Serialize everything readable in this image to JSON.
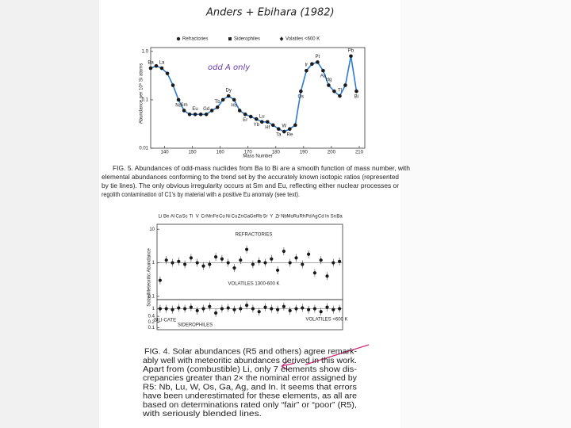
{
  "handwritten_title": "Anders + Ebihara (1982)",
  "figure5": {
    "type": "scatter",
    "legend": [
      "Refractories",
      "Siderophiles",
      "Volatiles <600 K"
    ],
    "annotation": "odd A only",
    "y_label": "Abundance per 10⁶ Si atoms",
    "x_label": "Mass Number",
    "log_y": true,
    "xlim": [
      135,
      212
    ],
    "xticks": [
      140,
      150,
      160,
      170,
      180,
      190,
      200,
      210
    ],
    "ylim": [
      0.01,
      1.2
    ],
    "yticks": [
      {
        "value": 1,
        "label": "1.0"
      },
      0.1,
      0.01
    ],
    "line_color": "#2e7bd6",
    "x": [
      135,
      137,
      139,
      141,
      143,
      145,
      147,
      149,
      151,
      153,
      155,
      157,
      159,
      161,
      163,
      165,
      167,
      169,
      171,
      173,
      175,
      177,
      179,
      181,
      183,
      185,
      187,
      189,
      191,
      193,
      195,
      197,
      199,
      201,
      203,
      205,
      207,
      209
    ],
    "values": [
      0.45,
      0.5,
      0.45,
      0.35,
      0.2,
      0.1,
      0.06,
      0.05,
      0.05,
      0.05,
      0.05,
      0.06,
      0.07,
      0.1,
      0.12,
      0.1,
      0.06,
      0.05,
      0.045,
      0.04,
      0.035,
      0.035,
      0.03,
      0.025,
      0.022,
      0.025,
      0.03,
      0.15,
      0.4,
      0.55,
      0.6,
      0.4,
      0.2,
      0.15,
      0.12,
      0.2,
      0.8,
      0.15
    ],
    "point_labels": [
      "Ba",
      null,
      "La",
      null,
      null,
      "Nd",
      "Sm",
      null,
      "Eu",
      null,
      "Gd",
      null,
      "Tb",
      null,
      "Dy",
      "Ho",
      null,
      "Er",
      null,
      "Yb",
      "Lu",
      "Hf",
      null,
      "Ta",
      "W",
      "Re",
      null,
      "Os",
      "Ir",
      null,
      "Pt",
      "Au",
      "Hg",
      null,
      "Tl",
      null,
      "Pb",
      "Bi"
    ]
  },
  "caption5": [
    "FIG. 5. Abundances of odd-mass nuclides from Ba to Bi are a smooth function of mass number, with",
    "elemental abundances conforming to the trend set by the accurately known isotopic ratios (represented",
    "by tie lines). The only obvious irregularity occurs at Sm and Eu, reflecting either nuclear processes or",
    "regolith contamination of C1's by material with a positive Eu anomaly (see text)."
  ],
  "figure4": {
    "type": "scatter",
    "y_label": "Solar/Meteoritic Abundance",
    "log_y": true,
    "categories": [
      "Li",
      "Be",
      "Al",
      "Ca",
      "Sc",
      "Ti",
      "V",
      "Cr",
      "Mn",
      "Fe",
      "Co",
      "Ni",
      "Cu",
      "Zn",
      "Ga",
      "Ge",
      "Rb",
      "Sr",
      "Y",
      "Zr",
      "Nb",
      "Mo",
      "Ru",
      "Rh",
      "Pd",
      "Ag",
      "Cd",
      "In",
      "Sn",
      "Ba"
    ],
    "upper": {
      "labels": [
        "REFRACTORIES",
        "VOLATILES 1300-600 K"
      ],
      "ylim": [
        0.08,
        14
      ],
      "yticks": [
        10,
        1,
        0.1
      ],
      "values": [
        0.3,
        1.2,
        1.0,
        1.1,
        0.9,
        1.4,
        1.0,
        0.8,
        0.9,
        1.5,
        1.3,
        1.0,
        0.7,
        1.2,
        2.5,
        0.9,
        1.1,
        1.0,
        1.3,
        0.6,
        2.2,
        1.0,
        1.4,
        0.9,
        1.8,
        0.5,
        1.2,
        0.4,
        1.0,
        1.1
      ]
    },
    "lower": {
      "labels": [
        "SILI-CATE",
        "SIDEROPHILES",
        "VOLATILES <600 K"
      ],
      "ylim": [
        0.08,
        3
      ],
      "yticks": [
        1,
        0.4,
        0.2,
        0.1
      ],
      "values": [
        1.0,
        1.0,
        0.9,
        1.1,
        1.0,
        1.2,
        0.8,
        1.0,
        1.3,
        0.6,
        1.0,
        1.1,
        0.9,
        1.0,
        1.5,
        1.0,
        0.7,
        1.2,
        1.0,
        0.9,
        1.3,
        0.8,
        1.0,
        1.1,
        0.9,
        1.0,
        0.7,
        1.2,
        0.9,
        1.0
      ]
    }
  },
  "caption4": [
    "FIG. 4. Solar abundances (R5 and others) agree remark-",
    "ably well with meteoritic abundances derived in this work.",
    "Apart from (combustible) Li, only 7 elements show dis-",
    "crepancies greater than 2× the nominal error assigned by",
    "R5: Nb, Lu, W, Os, Ga, Ag, and In. It seems that errors",
    "have been underestimated for these elements, as all are",
    "based on determinations rated only “fair” or “poor” (R5),",
    "with seriously blended lines."
  ]
}
